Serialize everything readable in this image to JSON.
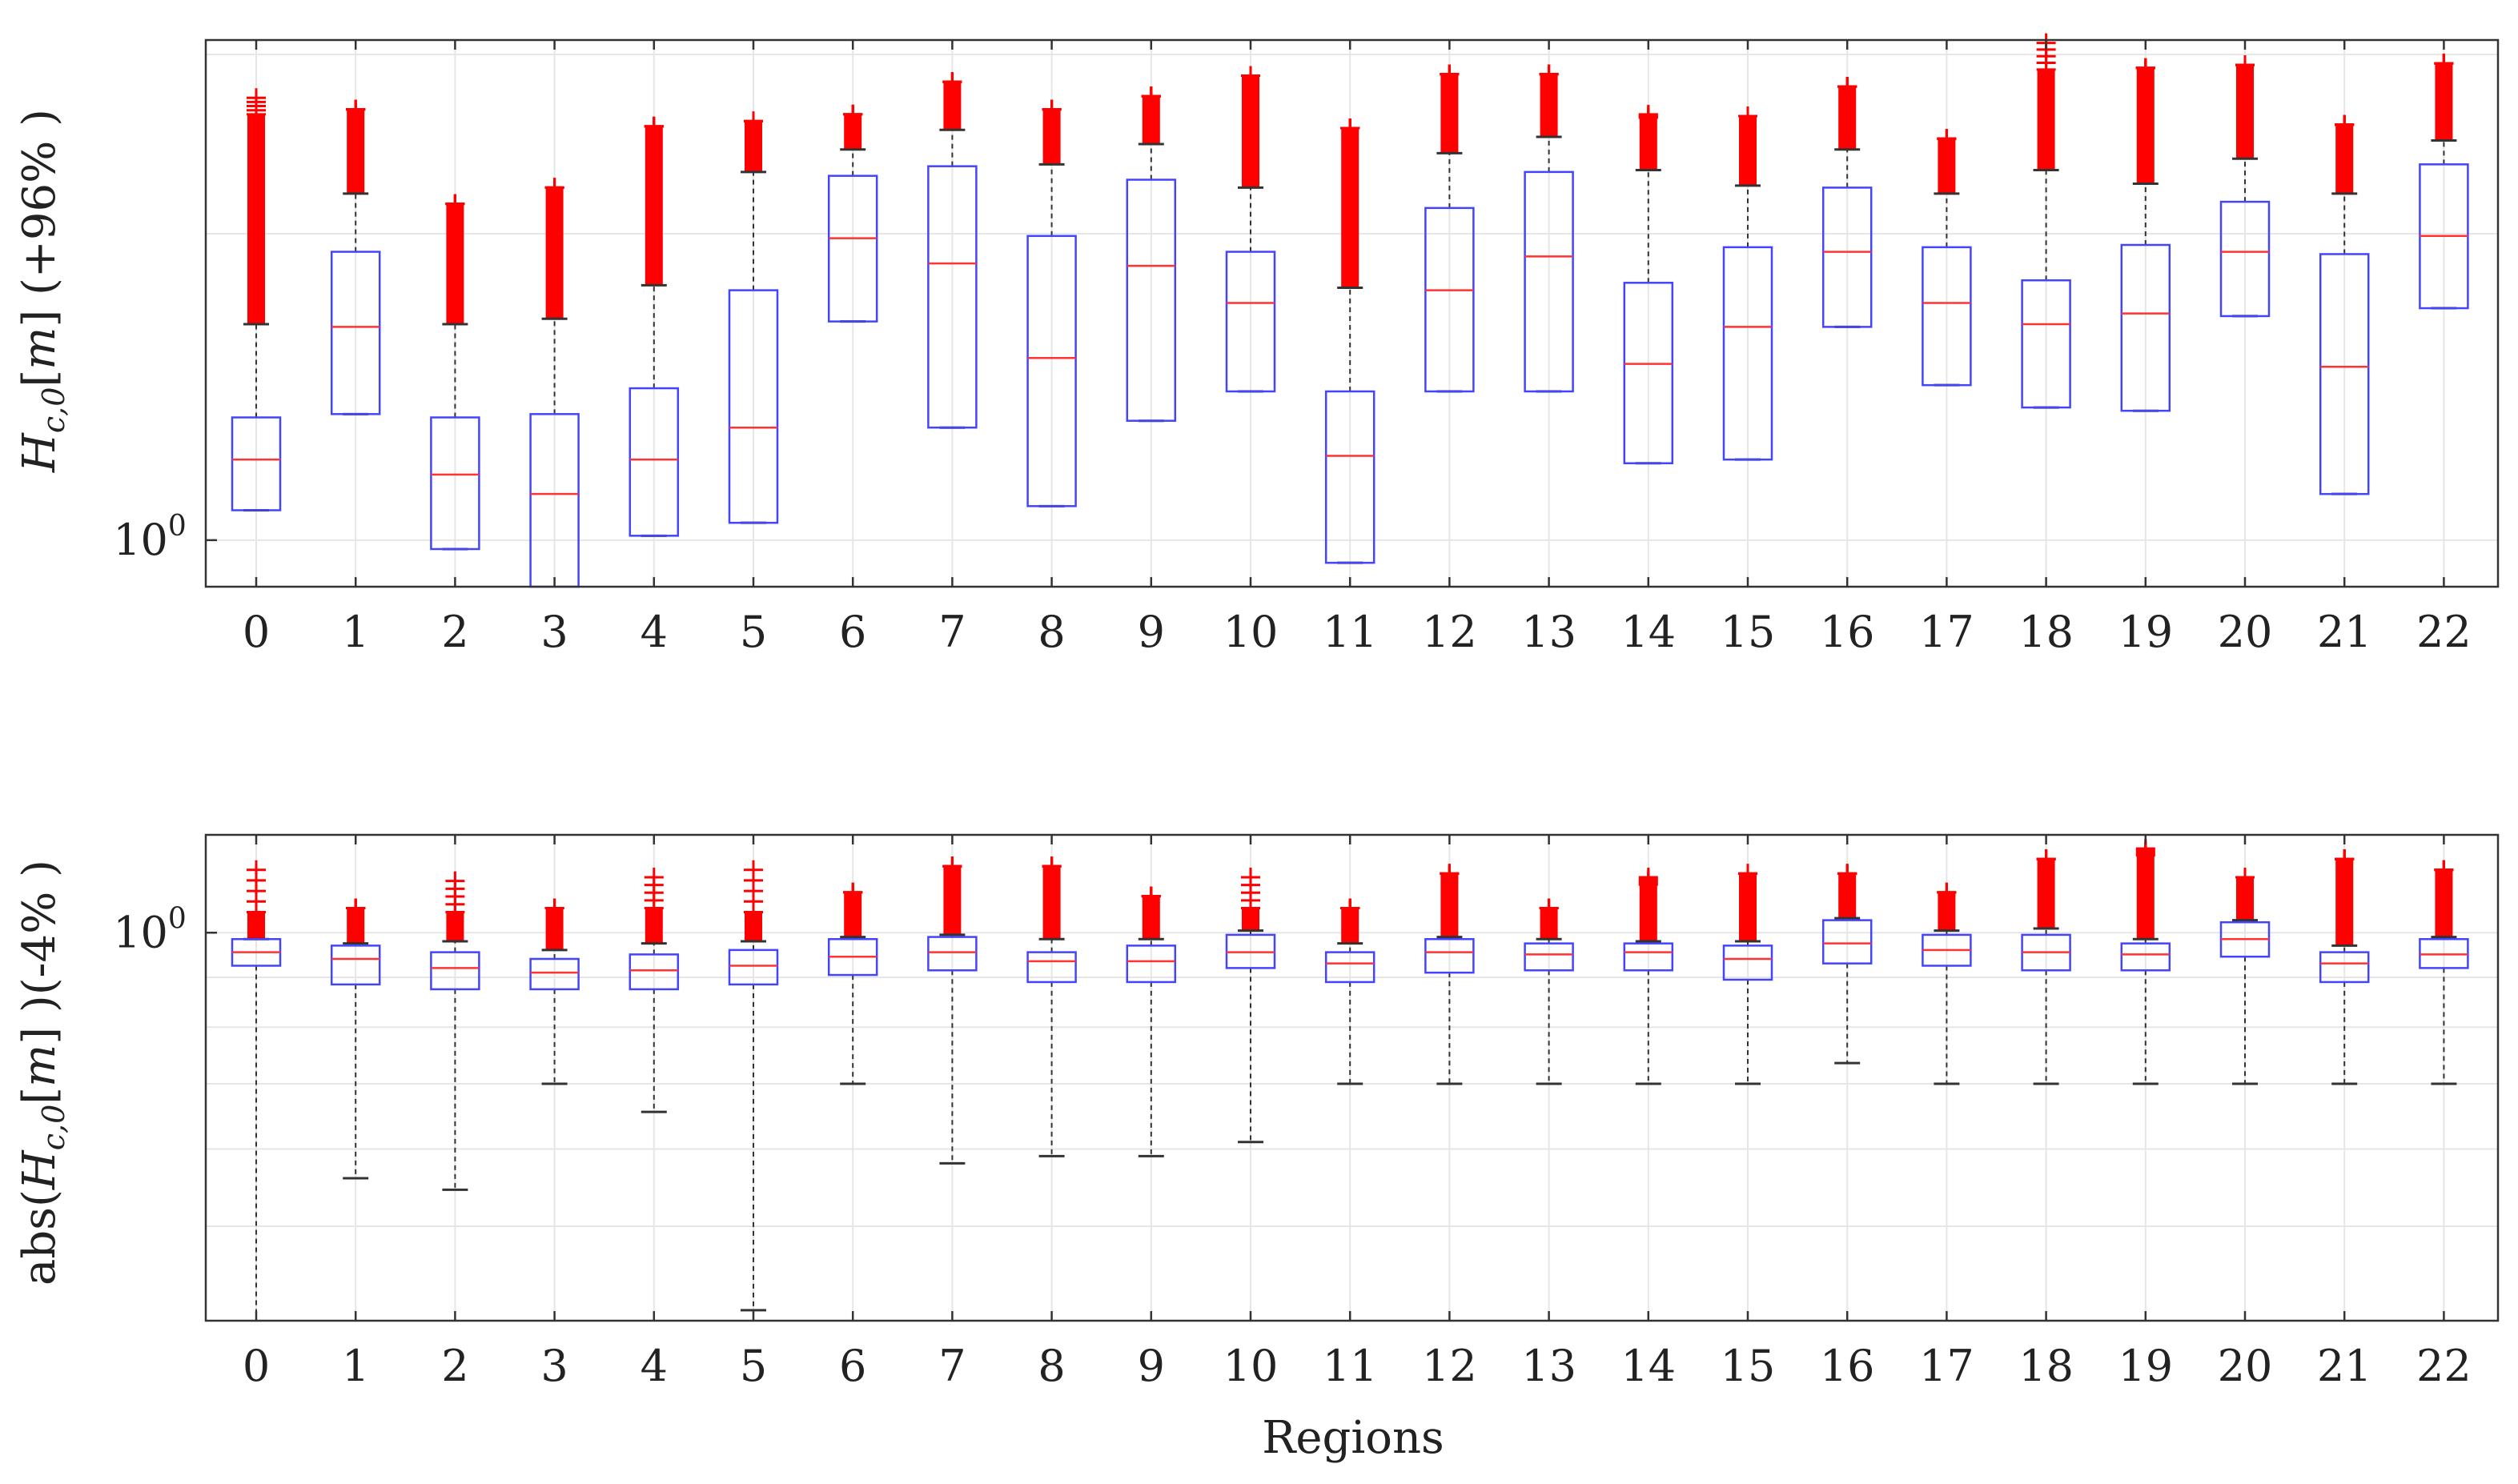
{
  "chart_data": [
    {
      "type": "boxplot",
      "panel": "top",
      "ylabel": "H_{c,0}[m] (+96% )",
      "xlabel": "",
      "scale": "log",
      "ylim": [
        0.9,
        3.1
      ],
      "ytick_labels": [
        {
          "value": 1.0,
          "label": "10^0"
        }
      ],
      "categories": [
        "0",
        "1",
        "2",
        "3",
        "4",
        "5",
        "6",
        "7",
        "8",
        "9",
        "10",
        "11",
        "12",
        "13",
        "14",
        "15",
        "16",
        "17",
        "18",
        "19",
        "20",
        "21",
        "22"
      ],
      "colors": {
        "box": "#4444ff",
        "median": "#ff3333",
        "outlier": "#ff0000",
        "whisker": "#333333",
        "grid": "#e6e6e6"
      },
      "series": [
        {
          "q1": 1.07,
          "median": 1.2,
          "q3": 1.32,
          "whisker_lo": 1.07,
          "whisker_hi": 1.63,
          "out_lo": 1.63,
          "out_hi": 2.62,
          "out_max": 2.72
        },
        {
          "q1": 1.33,
          "median": 1.62,
          "q3": 1.92,
          "whisker_lo": 1.33,
          "whisker_hi": 2.19,
          "out_lo": 2.19,
          "out_hi": 2.65,
          "out_max": 2.65
        },
        {
          "q1": 0.98,
          "median": 1.16,
          "q3": 1.32,
          "whisker_lo": 0.98,
          "whisker_hi": 1.63,
          "out_lo": 1.63,
          "out_hi": 2.14,
          "out_max": 2.14
        },
        {
          "q1": 0.9,
          "median": 1.11,
          "q3": 1.33,
          "whisker_lo": 0.9,
          "whisker_hi": 1.65,
          "out_lo": 1.65,
          "out_hi": 2.22,
          "out_max": 2.22
        },
        {
          "q1": 1.01,
          "median": 1.2,
          "q3": 1.41,
          "whisker_lo": 1.01,
          "whisker_hi": 1.78,
          "out_lo": 1.78,
          "out_hi": 2.55,
          "out_max": 2.55
        },
        {
          "q1": 1.04,
          "median": 1.29,
          "q3": 1.76,
          "whisker_lo": 1.04,
          "whisker_hi": 2.3,
          "out_lo": 2.3,
          "out_hi": 2.58,
          "out_max": 2.58
        },
        {
          "q1": 1.64,
          "median": 1.98,
          "q3": 2.28,
          "whisker_lo": 1.64,
          "whisker_hi": 2.42,
          "out_lo": 2.42,
          "out_hi": 2.62,
          "out_max": 2.62
        },
        {
          "q1": 1.29,
          "median": 1.87,
          "q3": 2.33,
          "whisker_lo": 1.29,
          "whisker_hi": 2.53,
          "out_lo": 2.53,
          "out_hi": 2.82,
          "out_max": 2.82
        },
        {
          "q1": 1.08,
          "median": 1.51,
          "q3": 1.99,
          "whisker_lo": 1.08,
          "whisker_hi": 2.34,
          "out_lo": 2.34,
          "out_hi": 2.65,
          "out_max": 2.65
        },
        {
          "q1": 1.31,
          "median": 1.86,
          "q3": 2.26,
          "whisker_lo": 1.31,
          "whisker_hi": 2.45,
          "out_lo": 2.45,
          "out_hi": 2.73,
          "out_max": 2.73
        },
        {
          "q1": 1.4,
          "median": 1.71,
          "q3": 1.92,
          "whisker_lo": 1.4,
          "whisker_hi": 2.22,
          "out_lo": 2.22,
          "out_hi": 2.86,
          "out_max": 2.86
        },
        {
          "q1": 0.95,
          "median": 1.21,
          "q3": 1.4,
          "whisker_lo": 0.95,
          "whisker_hi": 1.77,
          "out_lo": 1.77,
          "out_hi": 2.54,
          "out_max": 2.54
        },
        {
          "q1": 1.4,
          "median": 1.76,
          "q3": 2.12,
          "whisker_lo": 1.4,
          "whisker_hi": 2.4,
          "out_lo": 2.4,
          "out_hi": 2.87,
          "out_max": 2.87
        },
        {
          "q1": 1.4,
          "median": 1.9,
          "q3": 2.3,
          "whisker_lo": 1.4,
          "whisker_hi": 2.49,
          "out_lo": 2.49,
          "out_hi": 2.87,
          "out_max": 2.87
        },
        {
          "q1": 1.19,
          "median": 1.49,
          "q3": 1.79,
          "whisker_lo": 1.19,
          "whisker_hi": 2.31,
          "out_lo": 2.31,
          "out_hi": 2.6,
          "out_max": 2.62
        },
        {
          "q1": 1.2,
          "median": 1.62,
          "q3": 1.94,
          "whisker_lo": 1.2,
          "whisker_hi": 2.23,
          "out_lo": 2.23,
          "out_hi": 2.61,
          "out_max": 2.61
        },
        {
          "q1": 1.62,
          "median": 1.92,
          "q3": 2.22,
          "whisker_lo": 1.62,
          "whisker_hi": 2.42,
          "out_lo": 2.42,
          "out_hi": 2.79,
          "out_max": 2.79
        },
        {
          "q1": 1.42,
          "median": 1.71,
          "q3": 1.94,
          "whisker_lo": 1.42,
          "whisker_hi": 2.19,
          "out_lo": 2.19,
          "out_hi": 2.48,
          "out_max": 2.48
        },
        {
          "q1": 1.35,
          "median": 1.63,
          "q3": 1.8,
          "whisker_lo": 1.35,
          "whisker_hi": 2.31,
          "out_lo": 2.31,
          "out_hi": 2.9,
          "out_max": 3.08
        },
        {
          "q1": 1.34,
          "median": 1.67,
          "q3": 1.95,
          "whisker_lo": 1.34,
          "whisker_hi": 2.24,
          "out_lo": 2.24,
          "out_hi": 2.91,
          "out_max": 2.91
        },
        {
          "q1": 1.66,
          "median": 1.92,
          "q3": 2.15,
          "whisker_lo": 1.66,
          "whisker_hi": 2.37,
          "out_lo": 2.37,
          "out_hi": 2.93,
          "out_max": 2.93
        },
        {
          "q1": 1.11,
          "median": 1.48,
          "q3": 1.91,
          "whisker_lo": 1.11,
          "whisker_hi": 2.19,
          "out_lo": 2.19,
          "out_hi": 2.56,
          "out_max": 2.56
        },
        {
          "q1": 1.69,
          "median": 1.99,
          "q3": 2.34,
          "whisker_lo": 1.69,
          "whisker_hi": 2.47,
          "out_lo": 2.47,
          "out_hi": 2.94,
          "out_max": 2.94
        }
      ]
    },
    {
      "type": "boxplot",
      "panel": "bottom",
      "ylabel": "abs(H_{c,0}[m] )(-4% )",
      "xlabel": "Regions",
      "scale": "log",
      "ylim": [
        0.4,
        1.26
      ],
      "ytick_labels": [
        {
          "value": 1.0,
          "label": "10^0"
        }
      ],
      "categories": [
        "0",
        "1",
        "2",
        "3",
        "4",
        "5",
        "6",
        "7",
        "8",
        "9",
        "10",
        "11",
        "12",
        "13",
        "14",
        "15",
        "16",
        "17",
        "18",
        "19",
        "20",
        "21",
        "22"
      ],
      "colors": {
        "box": "#4444ff",
        "median": "#ff3333",
        "outlier": "#ff0000",
        "whisker": "#333333",
        "grid": "#e6e6e6"
      },
      "series": [
        {
          "q1": 0.925,
          "median": 0.955,
          "q3": 0.985,
          "whisker_lo": 0.4,
          "whisker_hi": 0.985,
          "out_lo": 0.985,
          "out_hi": 1.05,
          "out_max": 1.16
        },
        {
          "q1": 0.885,
          "median": 0.94,
          "q3": 0.97,
          "whisker_lo": 0.56,
          "whisker_hi": 0.975,
          "out_lo": 0.975,
          "out_hi": 1.06,
          "out_max": 1.06
        },
        {
          "q1": 0.875,
          "median": 0.92,
          "q3": 0.955,
          "whisker_lo": 0.545,
          "whisker_hi": 0.98,
          "out_lo": 0.98,
          "out_hi": 1.05,
          "out_max": 1.13
        },
        {
          "q1": 0.875,
          "median": 0.91,
          "q3": 0.94,
          "whisker_lo": 0.7,
          "whisker_hi": 0.96,
          "out_lo": 0.96,
          "out_hi": 1.06,
          "out_max": 1.06
        },
        {
          "q1": 0.875,
          "median": 0.915,
          "q3": 0.95,
          "whisker_lo": 0.655,
          "whisker_hi": 0.975,
          "out_lo": 0.975,
          "out_hi": 1.06,
          "out_max": 1.14
        },
        {
          "q1": 0.885,
          "median": 0.925,
          "q3": 0.96,
          "whisker_lo": 0.41,
          "whisker_hi": 0.98,
          "out_lo": 0.98,
          "out_hi": 1.05,
          "out_max": 1.16
        },
        {
          "q1": 0.905,
          "median": 0.945,
          "q3": 0.985,
          "whisker_lo": 0.7,
          "whisker_hi": 0.99,
          "out_lo": 0.99,
          "out_hi": 1.1,
          "out_max": 1.1
        },
        {
          "q1": 0.915,
          "median": 0.955,
          "q3": 0.99,
          "whisker_lo": 0.58,
          "whisker_hi": 0.995,
          "out_lo": 0.995,
          "out_hi": 1.17,
          "out_max": 1.17
        },
        {
          "q1": 0.89,
          "median": 0.935,
          "q3": 0.955,
          "whisker_lo": 0.59,
          "whisker_hi": 0.985,
          "out_lo": 0.985,
          "out_hi": 1.17,
          "out_max": 1.17
        },
        {
          "q1": 0.89,
          "median": 0.935,
          "q3": 0.97,
          "whisker_lo": 0.59,
          "whisker_hi": 0.985,
          "out_lo": 0.985,
          "out_hi": 1.09,
          "out_max": 1.09
        },
        {
          "q1": 0.92,
          "median": 0.955,
          "q3": 0.995,
          "whisker_lo": 0.61,
          "whisker_hi": 1.005,
          "out_lo": 1.005,
          "out_hi": 1.06,
          "out_max": 1.14
        },
        {
          "q1": 0.89,
          "median": 0.93,
          "q3": 0.955,
          "whisker_lo": 0.7,
          "whisker_hi": 0.975,
          "out_lo": 0.975,
          "out_hi": 1.06,
          "out_max": 1.06
        },
        {
          "q1": 0.91,
          "median": 0.955,
          "q3": 0.985,
          "whisker_lo": 0.7,
          "whisker_hi": 0.99,
          "out_lo": 0.99,
          "out_hi": 1.15,
          "out_max": 1.15
        },
        {
          "q1": 0.915,
          "median": 0.95,
          "q3": 0.975,
          "whisker_lo": 0.7,
          "whisker_hi": 0.985,
          "out_lo": 0.985,
          "out_hi": 1.06,
          "out_max": 1.06
        },
        {
          "q1": 0.915,
          "median": 0.955,
          "q3": 0.975,
          "whisker_lo": 0.7,
          "whisker_hi": 0.98,
          "out_lo": 0.98,
          "out_hi": 1.12,
          "out_max": 1.14
        },
        {
          "q1": 0.895,
          "median": 0.94,
          "q3": 0.97,
          "whisker_lo": 0.7,
          "whisker_hi": 0.98,
          "out_lo": 0.98,
          "out_hi": 1.15,
          "out_max": 1.15
        },
        {
          "q1": 0.93,
          "median": 0.975,
          "q3": 1.03,
          "whisker_lo": 0.735,
          "whisker_hi": 1.035,
          "out_lo": 1.035,
          "out_hi": 1.15,
          "out_max": 1.15
        },
        {
          "q1": 0.925,
          "median": 0.96,
          "q3": 0.995,
          "whisker_lo": 0.7,
          "whisker_hi": 1.005,
          "out_lo": 1.005,
          "out_hi": 1.1,
          "out_max": 1.1
        },
        {
          "q1": 0.915,
          "median": 0.955,
          "q3": 0.995,
          "whisker_lo": 0.7,
          "whisker_hi": 1.01,
          "out_lo": 1.01,
          "out_hi": 1.19,
          "out_max": 1.19
        },
        {
          "q1": 0.915,
          "median": 0.95,
          "q3": 0.975,
          "whisker_lo": 0.7,
          "whisker_hi": 0.985,
          "out_lo": 0.985,
          "out_hi": 1.2,
          "out_max": 1.22
        },
        {
          "q1": 0.945,
          "median": 0.985,
          "q3": 1.025,
          "whisker_lo": 0.7,
          "whisker_hi": 1.03,
          "out_lo": 1.03,
          "out_hi": 1.14,
          "out_max": 1.14
        },
        {
          "q1": 0.89,
          "median": 0.93,
          "q3": 0.955,
          "whisker_lo": 0.7,
          "whisker_hi": 0.97,
          "out_lo": 0.97,
          "out_hi": 1.19,
          "out_max": 1.19
        },
        {
          "q1": 0.92,
          "median": 0.95,
          "q3": 0.985,
          "whisker_lo": 0.7,
          "whisker_hi": 0.99,
          "out_lo": 0.99,
          "out_hi": 1.16,
          "out_max": 1.16
        }
      ]
    }
  ]
}
